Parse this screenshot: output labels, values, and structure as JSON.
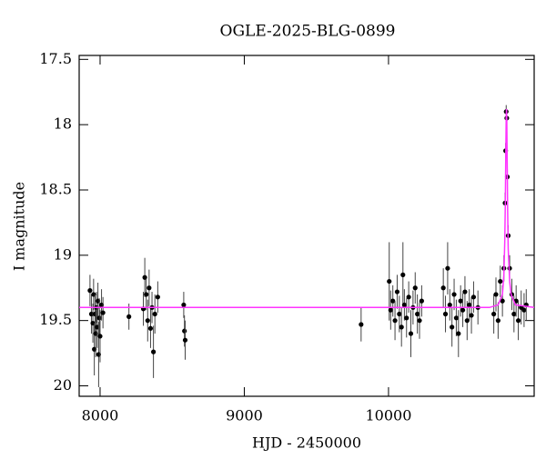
{
  "chart_data": {
    "type": "scatter",
    "title": "OGLE-2025-BLG-0899",
    "x_label": "HJD - 2450000",
    "y_label": "I magnitude",
    "xlim": [
      7855,
      11010
    ],
    "ylim": [
      20.08,
      17.47
    ],
    "xticks": [
      8000,
      9000,
      10000
    ],
    "yticks": [
      17.5,
      18,
      18.5,
      19,
      19.5,
      20
    ],
    "series": [
      {
        "kind": "points",
        "color": "#000000",
        "x": [
          7930,
          7940,
          7950,
          7955,
          7960,
          7965,
          7970,
          7975,
          7980,
          7985,
          7990,
          7995,
          8000,
          8010,
          8020,
          8200,
          8300,
          8310,
          8320,
          8330,
          8340,
          8350,
          8360,
          8370,
          8380,
          8400,
          8580,
          8585,
          8590,
          9810,
          10005,
          10015,
          10030,
          10045,
          10060,
          10075,
          10090,
          10100,
          10110,
          10125,
          10140,
          10155,
          10170,
          10185,
          10200,
          10215,
          10230,
          10380,
          10395,
          10410,
          10425,
          10440,
          10455,
          10470,
          10485,
          10500,
          10515,
          10530,
          10545,
          10560,
          10575,
          10590,
          10620,
          10730,
          10745,
          10760,
          10775,
          10790,
          10800,
          10808,
          10812,
          10816,
          10820,
          10824,
          10830,
          10840,
          10855,
          10870,
          10885,
          10900,
          10920,
          10940,
          10955
        ],
        "values": [
          19.27,
          19.45,
          19.52,
          19.3,
          19.72,
          19.45,
          19.6,
          19.4,
          19.55,
          19.35,
          19.76,
          19.48,
          19.62,
          19.38,
          19.44,
          19.47,
          19.41,
          19.17,
          19.3,
          19.5,
          19.25,
          19.56,
          19.4,
          19.74,
          19.45,
          19.32,
          19.38,
          19.58,
          19.65,
          19.53,
          19.2,
          19.42,
          19.35,
          19.5,
          19.28,
          19.45,
          19.55,
          19.15,
          19.38,
          19.48,
          19.32,
          19.6,
          19.4,
          19.25,
          19.45,
          19.5,
          19.35,
          19.25,
          19.45,
          19.1,
          19.38,
          19.55,
          19.3,
          19.48,
          19.6,
          19.35,
          19.42,
          19.28,
          19.5,
          19.38,
          19.46,
          19.32,
          19.4,
          19.45,
          19.3,
          19.5,
          19.2,
          19.35,
          19.1,
          18.6,
          18.2,
          17.9,
          17.95,
          18.4,
          18.85,
          19.1,
          19.3,
          19.45,
          19.35,
          19.5,
          19.4,
          19.42,
          19.38
        ],
        "errors": [
          0.12,
          0.15,
          0.15,
          0.12,
          0.2,
          0.15,
          0.18,
          0.12,
          0.16,
          0.14,
          0.25,
          0.15,
          0.2,
          0.12,
          0.12,
          0.1,
          0.13,
          0.15,
          0.12,
          0.16,
          0.14,
          0.15,
          0.12,
          0.2,
          0.15,
          0.12,
          0.1,
          0.12,
          0.15,
          0.13,
          0.3,
          0.15,
          0.12,
          0.15,
          0.13,
          0.14,
          0.15,
          0.25,
          0.12,
          0.15,
          0.12,
          0.18,
          0.13,
          0.12,
          0.15,
          0.14,
          0.12,
          0.15,
          0.14,
          0.2,
          0.12,
          0.15,
          0.12,
          0.14,
          0.18,
          0.12,
          0.13,
          0.12,
          0.15,
          0.12,
          0.14,
          0.12,
          0.13,
          0.15,
          0.13,
          0.14,
          0.12,
          0.12,
          0.1,
          0.08,
          0.06,
          0.05,
          0.05,
          0.06,
          0.08,
          0.1,
          0.12,
          0.14,
          0.12,
          0.15,
          0.13,
          0.13,
          0.12
        ]
      },
      {
        "kind": "model",
        "color": "#ff33ff",
        "x": [
          7855,
          10700,
          10760,
          10790,
          10800,
          10806,
          10810,
          10813,
          10816,
          10818,
          10820,
          10823,
          10826,
          10830,
          10840,
          10850,
          10880,
          11010
        ],
        "values": [
          19.4,
          19.4,
          19.38,
          19.3,
          19.15,
          18.9,
          18.6,
          18.25,
          17.95,
          17.88,
          17.95,
          18.3,
          18.65,
          18.95,
          19.2,
          19.3,
          19.38,
          19.4
        ]
      }
    ]
  }
}
